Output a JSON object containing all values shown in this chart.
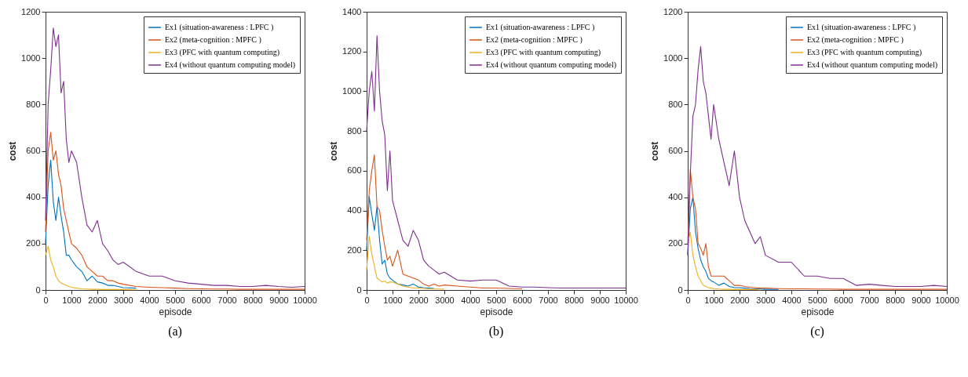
{
  "chart_data": [
    {
      "type": "line",
      "title": "(a)",
      "xlabel": "episode",
      "ylabel": "cost",
      "legend": "top right",
      "grid": false,
      "xlim": [
        0,
        10000
      ],
      "xticks": [
        0,
        1000,
        2000,
        3000,
        4000,
        5000,
        6000,
        7000,
        8000,
        9000,
        10000
      ],
      "ylim": [
        0,
        1200
      ],
      "yticks": [
        0,
        200,
        400,
        600,
        800,
        1000,
        1200
      ],
      "x": [
        0,
        100,
        200,
        300,
        400,
        500,
        600,
        700,
        800,
        900,
        1000,
        1200,
        1400,
        1600,
        1800,
        2000,
        2200,
        2400,
        2600,
        2800,
        3000,
        3500,
        4000,
        4500,
        5000,
        5500,
        6000,
        6500,
        7000,
        7500,
        8000,
        8500,
        9000,
        9500,
        10000
      ],
      "series": [
        {
          "name": "Ex1 (situation-awareness : LPFC )",
          "color": "#0072bd",
          "values": [
            200,
            450,
            560,
            380,
            300,
            400,
            320,
            250,
            150,
            150,
            130,
            100,
            80,
            40,
            60,
            35,
            30,
            20,
            20,
            15,
            10,
            8,
            null,
            null,
            null,
            null,
            null,
            null,
            null,
            null,
            null,
            null,
            null,
            null,
            null
          ]
        },
        {
          "name": "Ex2 (meta-cognition : MPFC )",
          "color": "#d95319",
          "values": [
            250,
            600,
            680,
            560,
            600,
            500,
            450,
            350,
            300,
            250,
            200,
            180,
            150,
            100,
            80,
            60,
            60,
            40,
            40,
            30,
            25,
            15,
            12,
            10,
            8,
            6,
            5,
            4,
            4,
            3,
            3,
            3,
            3,
            3,
            3
          ]
        },
        {
          "name": "Ex3 (PFC with quantum computing)",
          "color": "#edb120",
          "values": [
            150,
            190,
            130,
            100,
            60,
            40,
            30,
            25,
            20,
            15,
            12,
            8,
            5,
            4,
            3,
            3,
            2,
            2,
            2,
            2,
            2,
            1,
            null,
            null,
            null,
            null,
            null,
            null,
            null,
            null,
            null,
            null,
            null,
            null,
            null
          ]
        },
        {
          "name": "Ex4 (without quantum computing model)",
          "color": "#7e2f8e",
          "values": [
            300,
            800,
            950,
            1130,
            1050,
            1100,
            850,
            900,
            650,
            550,
            600,
            550,
            400,
            280,
            250,
            300,
            200,
            170,
            130,
            110,
            120,
            80,
            60,
            60,
            40,
            30,
            25,
            20,
            20,
            15,
            15,
            20,
            15,
            12,
            15
          ]
        }
      ]
    },
    {
      "type": "line",
      "title": "(b)",
      "xlabel": "episode",
      "ylabel": "cost",
      "legend": "top right",
      "grid": false,
      "xlim": [
        0,
        10000
      ],
      "xticks": [
        0,
        1000,
        2000,
        3000,
        4000,
        5000,
        6000,
        7000,
        8000,
        9000,
        10000
      ],
      "ylim": [
        0,
        1400
      ],
      "yticks": [
        0,
        200,
        400,
        600,
        800,
        1000,
        1200,
        1400
      ],
      "x": [
        0,
        100,
        200,
        300,
        400,
        500,
        600,
        700,
        800,
        900,
        1000,
        1200,
        1400,
        1600,
        1800,
        2000,
        2200,
        2400,
        2600,
        2800,
        3000,
        3500,
        4000,
        4500,
        5000,
        5500,
        6000,
        6500,
        7000,
        7500,
        8000,
        8500,
        9000,
        9500,
        10000
      ],
      "series": [
        {
          "name": "Ex1 (situation-awareness : LPFC )",
          "color": "#0072bd",
          "values": [
            200,
            470,
            380,
            300,
            420,
            250,
            130,
            150,
            80,
            60,
            50,
            30,
            25,
            20,
            30,
            15,
            12,
            10,
            8,
            null,
            null,
            null,
            null,
            null,
            null,
            null,
            null,
            null,
            null,
            null,
            null,
            null,
            null,
            null,
            null
          ]
        },
        {
          "name": "Ex2 (meta-cognition : MPFC )",
          "color": "#d95319",
          "values": [
            250,
            500,
            600,
            680,
            420,
            400,
            300,
            220,
            150,
            170,
            120,
            200,
            80,
            70,
            60,
            50,
            30,
            20,
            30,
            20,
            25,
            20,
            15,
            10,
            10,
            8,
            6,
            null,
            null,
            null,
            null,
            null,
            null,
            null,
            null
          ]
        },
        {
          "name": "Ex3 (PFC with quantum computing)",
          "color": "#edb120",
          "values": [
            100,
            270,
            180,
            120,
            60,
            50,
            40,
            45,
            35,
            40,
            40,
            30,
            20,
            15,
            10,
            10,
            8,
            6,
            5,
            5,
            4,
            null,
            null,
            null,
            null,
            null,
            null,
            null,
            null,
            null,
            null,
            null,
            null,
            null,
            null
          ]
        },
        {
          "name": "Ex4 (without quantum computing model)",
          "color": "#7e2f8e",
          "values": [
            800,
            1000,
            1100,
            900,
            1280,
            1000,
            850,
            780,
            500,
            700,
            450,
            350,
            250,
            220,
            300,
            250,
            150,
            120,
            100,
            80,
            90,
            50,
            45,
            50,
            50,
            20,
            15,
            15,
            12,
            10,
            10,
            10,
            10,
            10,
            10
          ]
        }
      ]
    },
    {
      "type": "line",
      "title": "(c)",
      "xlabel": "episode",
      "ylabel": "cost",
      "legend": "top right",
      "grid": false,
      "xlim": [
        0,
        10000
      ],
      "xticks": [
        0,
        1000,
        2000,
        3000,
        4000,
        5000,
        6000,
        7000,
        8000,
        9000,
        10000
      ],
      "ylim": [
        0,
        1200
      ],
      "yticks": [
        0,
        200,
        400,
        600,
        800,
        1000,
        1200
      ],
      "x": [
        0,
        100,
        200,
        300,
        400,
        500,
        600,
        700,
        800,
        900,
        1000,
        1200,
        1400,
        1600,
        1800,
        2000,
        2200,
        2400,
        2600,
        2800,
        3000,
        3500,
        4000,
        4500,
        5000,
        5500,
        6000,
        6500,
        7000,
        7500,
        8000,
        8500,
        9000,
        9500,
        10000
      ],
      "series": [
        {
          "name": "Ex1 (situation-awareness : LPFC )",
          "color": "#0072bd",
          "values": [
            150,
            350,
            400,
            250,
            180,
            130,
            100,
            80,
            50,
            40,
            35,
            20,
            30,
            15,
            10,
            10,
            8,
            6,
            5,
            4,
            3,
            3,
            null,
            null,
            null,
            null,
            null,
            null,
            null,
            null,
            null,
            null,
            null,
            null,
            null
          ]
        },
        {
          "name": "Ex2 (meta-cognition : MPFC )",
          "color": "#d95319",
          "values": [
            200,
            520,
            400,
            350,
            200,
            180,
            150,
            200,
            100,
            60,
            60,
            60,
            60,
            40,
            20,
            20,
            15,
            12,
            10,
            8,
            8,
            6,
            5,
            5,
            4,
            4,
            3,
            3,
            3,
            3,
            3,
            3,
            3,
            3,
            3
          ]
        },
        {
          "name": "Ex3 (PFC with quantum computing)",
          "color": "#edb120",
          "values": [
            200,
            250,
            150,
            100,
            60,
            40,
            20,
            15,
            10,
            8,
            6,
            4,
            3,
            3,
            2,
            2,
            2,
            2,
            2,
            1,
            null,
            null,
            null,
            null,
            null,
            null,
            null,
            null,
            null,
            null,
            null,
            null,
            null,
            null,
            null
          ]
        },
        {
          "name": "Ex4 (without quantum computing model)",
          "color": "#7e2f8e",
          "values": [
            150,
            500,
            750,
            800,
            950,
            1050,
            900,
            850,
            750,
            650,
            800,
            650,
            550,
            450,
            600,
            400,
            300,
            250,
            200,
            230,
            150,
            120,
            120,
            60,
            60,
            50,
            50,
            20,
            25,
            20,
            15,
            15,
            15,
            20,
            15
          ]
        }
      ]
    }
  ]
}
